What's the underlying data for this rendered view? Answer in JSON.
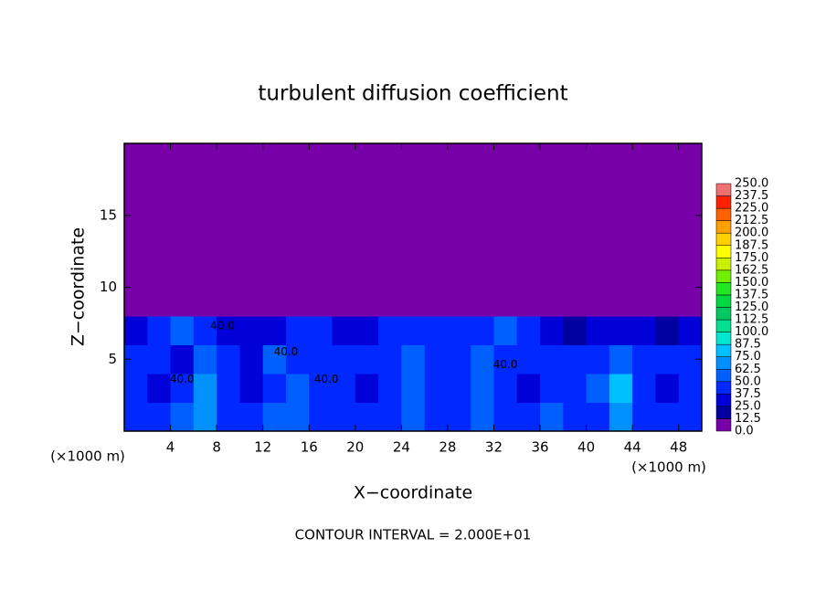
{
  "chart_data": {
    "type": "heatmap",
    "title": "turbulent diffusion coefficient",
    "x_label": "X−coordinate",
    "y_label": "Z−coordinate",
    "x_unit": "(×1000 m)",
    "y_unit": "(×1000 m)",
    "footer": "CONTOUR INTERVAL = 2.000E+01",
    "xlim": [
      0,
      50
    ],
    "ylim": [
      0,
      20
    ],
    "xticks": [
      4,
      8,
      12,
      16,
      20,
      24,
      28,
      32,
      36,
      40,
      44,
      48
    ],
    "yticks": [
      5,
      10,
      15
    ],
    "values": [
      [
        45,
        40,
        55,
        70,
        42,
        38,
        50,
        60,
        40,
        45,
        38,
        42,
        55,
        48,
        40,
        62,
        45,
        40,
        52,
        45,
        40,
        70,
        45,
        40,
        38
      ],
      [
        40,
        35,
        40,
        65,
        38,
        32,
        45,
        55,
        38,
        42,
        35,
        40,
        50,
        45,
        38,
        58,
        42,
        35,
        45,
        40,
        50,
        75,
        40,
        35,
        38
      ],
      [
        42,
        38,
        35,
        60,
        40,
        35,
        50,
        45,
        42,
        48,
        38,
        45,
        52,
        40,
        45,
        55,
        48,
        40,
        42,
        38,
        45,
        60,
        42,
        40,
        40
      ],
      [
        35,
        45,
        50,
        40,
        30,
        25,
        30,
        45,
        40,
        35,
        30,
        45,
        45,
        40,
        45,
        40,
        50,
        40,
        30,
        15,
        25,
        35,
        30,
        20,
        35
      ],
      [
        0,
        0,
        0,
        0,
        0,
        0,
        0,
        0,
        0,
        0,
        0,
        0,
        0,
        0,
        0,
        0,
        0,
        0,
        5,
        0,
        0,
        0,
        0,
        0,
        0
      ],
      [
        0,
        0,
        0,
        0,
        0,
        0,
        0,
        0,
        0,
        0,
        0,
        0,
        0,
        0,
        0,
        0,
        0,
        0,
        0,
        0,
        0,
        0,
        0,
        0,
        0
      ],
      [
        0,
        0,
        0,
        0,
        0,
        0,
        0,
        0,
        0,
        0,
        0,
        0,
        0,
        0,
        0,
        0,
        0,
        0,
        0,
        0,
        0,
        0,
        0,
        0,
        0
      ],
      [
        0,
        0,
        0,
        0,
        0,
        0,
        0,
        0,
        0,
        0,
        0,
        0,
        0,
        0,
        0,
        0,
        0,
        0,
        0,
        0,
        0,
        0,
        0,
        0,
        0
      ],
      [
        0,
        0,
        0,
        0,
        0,
        0,
        0,
        0,
        0,
        0,
        0,
        0,
        0,
        0,
        0,
        0,
        0,
        0,
        0,
        0,
        0,
        0,
        0,
        0,
        0
      ],
      [
        0,
        0,
        0,
        0,
        0,
        0,
        0,
        0,
        0,
        0,
        0,
        0,
        0,
        0,
        0,
        0,
        0,
        0,
        0,
        0,
        0,
        0,
        0,
        0,
        0
      ]
    ],
    "contour_labels": [
      {
        "text": "40.0",
        "x": 8.5,
        "y": 7.3
      },
      {
        "text": "40.0",
        "x": 14,
        "y": 5.5
      },
      {
        "text": "40.0",
        "x": 5,
        "y": 3.6
      },
      {
        "text": "40.0",
        "x": 17.5,
        "y": 3.6
      },
      {
        "text": "40.0",
        "x": 33,
        "y": 4.6
      }
    ],
    "colorbar": {
      "ticks": [
        {
          "value": 0,
          "label": "0.0"
        },
        12.5,
        {
          "value": 25,
          "label": "25.0"
        },
        37.5,
        {
          "value": 50,
          "label": "50.0"
        },
        62.5,
        {
          "value": 75,
          "label": "75.0"
        },
        87.5,
        {
          "value": 100,
          "label": "100.0"
        },
        112.5,
        {
          "value": 125,
          "label": "125.0"
        },
        137.5,
        {
          "value": 150,
          "label": "150.0"
        },
        162.5,
        {
          "value": 175,
          "label": "175.0"
        },
        187.5,
        {
          "value": 200,
          "label": "200.0"
        },
        212.5,
        {
          "value": 225,
          "label": "225.0"
        },
        237.5,
        {
          "value": 250,
          "label": "250.0"
        }
      ],
      "colors": [
        "#7800a8",
        "#0000a0",
        "#0000d8",
        "#0028ff",
        "#0060ff",
        "#0090ff",
        "#00c0ff",
        "#00e8d0",
        "#00e090",
        "#00c860",
        "#00d840",
        "#20e820",
        "#70f000",
        "#c8f000",
        "#ffff00",
        "#ffd000",
        "#ffa000",
        "#ff6000",
        "#ff2000",
        "#f07070"
      ]
    }
  }
}
